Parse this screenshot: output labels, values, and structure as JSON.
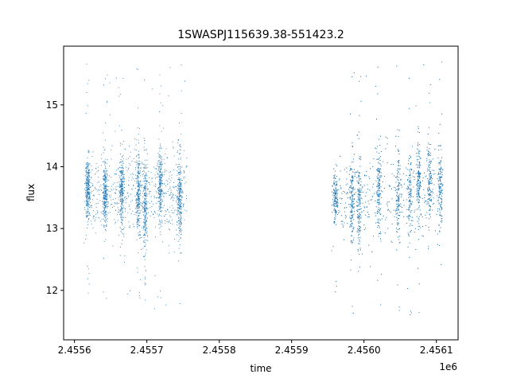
{
  "chart_data": {
    "type": "scatter",
    "title": "1SWASPJ115639.38-551423.2",
    "xlabel": "time",
    "ylabel": "flux",
    "x_offset_label": "1e6",
    "x_tick_labels": [
      "2.4556",
      "2.4557",
      "2.4558",
      "2.4559",
      "2.4560",
      "2.4561"
    ],
    "x_tick_values": [
      2455600,
      2455700,
      2455800,
      2455900,
      2456000,
      2456100
    ],
    "y_tick_labels": [
      "12",
      "13",
      "14",
      "15"
    ],
    "y_tick_values": [
      12,
      13,
      14,
      15
    ],
    "xlim": [
      2455585,
      2456130
    ],
    "ylim": [
      11.2,
      15.95
    ],
    "grid": false,
    "legend": "none",
    "marker_color": "#1f77b4",
    "series": [
      {
        "segments": [
          {
            "x_start": 2455613,
            "x_end": 2455755,
            "y_center": 13.6,
            "y_spread": 0.55,
            "outlier_min": 11.7,
            "outlier_max": 15.7,
            "count": 2600
          },
          {
            "x_start": 2455955,
            "x_end": 2456107,
            "y_center": 13.55,
            "y_spread": 0.6,
            "outlier_min": 11.45,
            "outlier_max": 15.75,
            "count": 3200
          }
        ],
        "clusters": [
          {
            "x": 2455618,
            "y_center": 13.65,
            "y_spread": 0.4
          },
          {
            "x": 2455642,
            "y_center": 13.55,
            "y_spread": 0.45
          },
          {
            "x": 2455665,
            "y_center": 13.6,
            "y_spread": 0.5
          },
          {
            "x": 2455688,
            "y_center": 13.6,
            "y_spread": 0.5
          },
          {
            "x": 2455697,
            "y_center": 13.3,
            "y_spread": 0.7
          },
          {
            "x": 2455718,
            "y_center": 13.7,
            "y_spread": 0.45
          },
          {
            "x": 2455745,
            "y_center": 13.5,
            "y_spread": 0.5
          },
          {
            "x": 2455960,
            "y_center": 13.5,
            "y_spread": 0.35
          },
          {
            "x": 2455983,
            "y_center": 13.45,
            "y_spread": 0.6
          },
          {
            "x": 2455993,
            "y_center": 13.4,
            "y_spread": 0.65
          },
          {
            "x": 2456020,
            "y_center": 13.6,
            "y_spread": 0.55
          },
          {
            "x": 2456047,
            "y_center": 13.6,
            "y_spread": 0.55
          },
          {
            "x": 2456063,
            "y_center": 13.55,
            "y_spread": 0.6
          },
          {
            "x": 2456075,
            "y_center": 13.8,
            "y_spread": 0.55
          },
          {
            "x": 2456090,
            "y_center": 13.7,
            "y_spread": 0.5
          },
          {
            "x": 2456105,
            "y_center": 13.7,
            "y_spread": 0.45
          }
        ]
      }
    ]
  }
}
